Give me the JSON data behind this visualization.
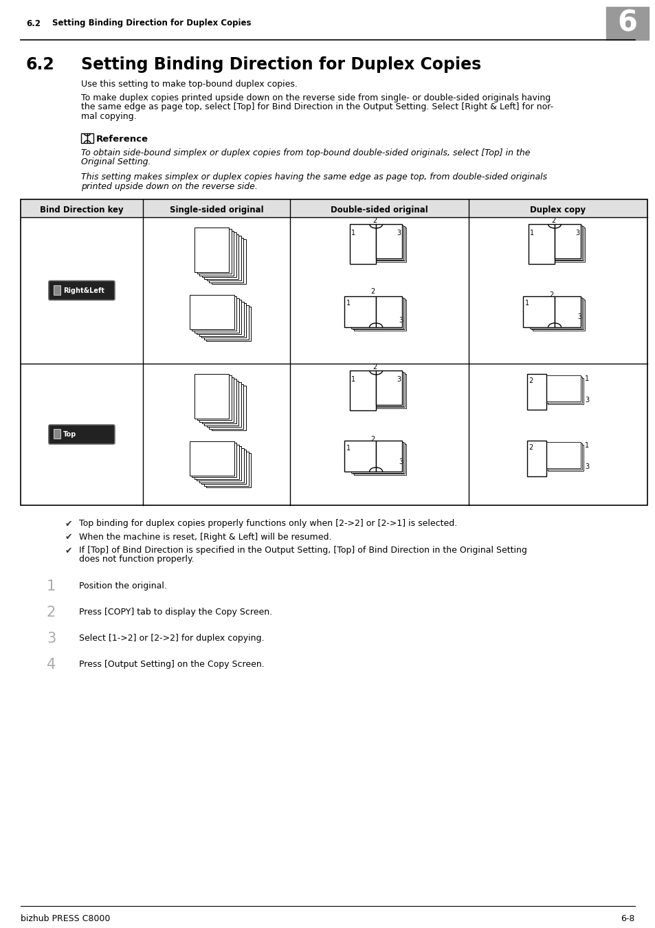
{
  "header_num": "6",
  "header_label": "6.2",
  "header_text": "Setting Binding Direction for Duplex Copies",
  "title_num": "6.2",
  "title_text": "Setting Binding Direction for Duplex Copies",
  "para1": "Use this setting to make top-bound duplex copies.",
  "para2_lines": [
    "To make duplex copies printed upside down on the reverse side from single- or double-sided originals having",
    "the same edge as page top, select [Top] for Bind Direction in the Output Setting. Select [Right & Left] for nor-",
    "mal copying."
  ],
  "ref_title": "Reference",
  "ref1_lines": [
    "To obtain side-bound simplex or duplex copies from top-bound double-sided originals, select [Top] in the",
    "Original Setting."
  ],
  "ref2_lines": [
    "This setting makes simplex or duplex copies having the same edge as page top, from double-sided originals",
    "printed upside down on the reverse side."
  ],
  "table_headers": [
    "Bind Direction key",
    "Single-sided original",
    "Double-sided original",
    "Duplex copy"
  ],
  "bullet_lines": [
    [
      "Top binding for duplex copies properly functions only when [2->2] or [2->1] is selected."
    ],
    [
      "When the machine is reset, [Right & Left] will be resumed."
    ],
    [
      "If [Top] of Bind Direction is specified in the Output Setting, [Top] of Bind Direction in the Original Setting",
      "does not function properly."
    ]
  ],
  "steps": [
    {
      "num": "1",
      "text": "Position the original."
    },
    {
      "num": "2",
      "text": "Press [COPY] tab to display the Copy Screen."
    },
    {
      "num": "3",
      "text": "Select [1->2] or [2->2] for duplex copying."
    },
    {
      "num": "4",
      "text": "Press [Output Setting] on the Copy Screen."
    }
  ],
  "footer_left": "bizhub PRESS C8000",
  "footer_right": "6-8"
}
